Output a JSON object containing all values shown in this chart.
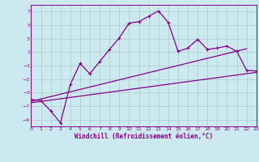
{
  "xlabel": "Windchill (Refroidissement éolien,°C)",
  "background_color": "#cce9ef",
  "grid_color": "#aacccc",
  "line_color": "#880088",
  "xlim": [
    0,
    23
  ],
  "ylim": [
    -10,
    8
  ],
  "yticks": [
    -9,
    -7,
    -5,
    -3,
    -1,
    1,
    3,
    5,
    7
  ],
  "xticks": [
    0,
    1,
    2,
    3,
    4,
    5,
    6,
    7,
    8,
    9,
    10,
    11,
    12,
    13,
    14,
    15,
    16,
    17,
    18,
    19,
    20,
    21,
    22,
    23
  ],
  "line1_x": [
    0,
    1,
    2,
    3,
    4,
    5,
    6,
    7,
    8,
    9,
    10,
    11,
    12,
    13,
    14,
    15,
    16,
    17,
    18,
    19,
    20,
    21,
    22,
    23
  ],
  "line1_y": [
    -6.0,
    -6.2,
    -7.7,
    -9.5,
    -3.8,
    -0.7,
    -2.2,
    -0.4,
    1.4,
    3.1,
    5.3,
    5.5,
    6.3,
    7.1,
    5.4,
    1.1,
    1.6,
    2.9,
    1.4,
    1.6,
    1.9,
    1.1,
    -1.7,
    -1.8
  ],
  "line2_x": [
    0,
    22
  ],
  "line2_y": [
    -6.3,
    1.5
  ],
  "line3_x": [
    0,
    23
  ],
  "line3_y": [
    -6.5,
    -2.0
  ]
}
